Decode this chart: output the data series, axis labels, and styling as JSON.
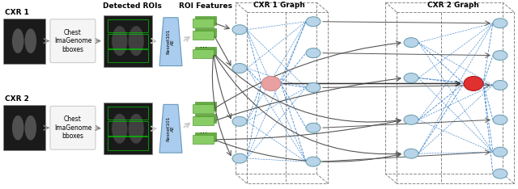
{
  "bg_color": "#ffffff",
  "cxr1_label": "CXR 1",
  "cxr2_label": "CXR 2",
  "detected_rois_label": "Detected ROIs",
  "roi_features_label": "ROI Features",
  "cxr1_graph_label": "CXR 1 Graph",
  "cxr2_graph_label": "CXR 2 Graph",
  "resnet_label": "Resnet101\nAE",
  "bbox_label": "Chest\nImaGenome\nbboxes",
  "node_color_blue": "#b8d4e8",
  "node_color_red": "#e03030",
  "node_color_pink": "#e8a0a0",
  "feature_color": "#88cc66",
  "feature_color_dark": "#66aa44",
  "dashed_color": "#4488cc",
  "arrow_color": "#888888",
  "arrow_color_dark": "#555555",
  "trap_color": "#aaccee",
  "trap_edge": "#6699bb"
}
